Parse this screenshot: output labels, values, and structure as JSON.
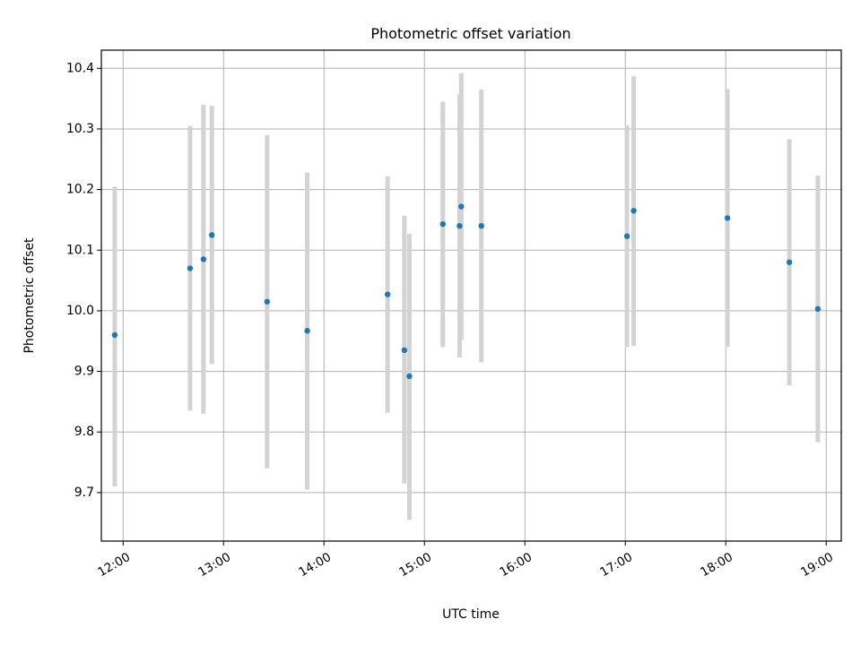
{
  "chart_data": {
    "type": "scatter",
    "title": "Photometric offset variation",
    "xlabel": "UTC time",
    "ylabel": "Photometric offset",
    "x_tick_labels": [
      "12:00",
      "13:00",
      "14:00",
      "15:00",
      "16:00",
      "17:00",
      "18:00",
      "19:00"
    ],
    "y_tick_labels": [
      "9.7",
      "9.8",
      "9.9",
      "10.0",
      "10.1",
      "10.2",
      "10.3",
      "10.4"
    ],
    "x_range": [
      "11:47",
      "19:09"
    ],
    "ylim": [
      9.62,
      10.43
    ],
    "grid": true,
    "marker_color": "#1f77b4",
    "errorbar_color": "#d3d3d3",
    "points": [
      {
        "time": "11:55",
        "y": 9.96,
        "low": 9.71,
        "high": 10.205
      },
      {
        "time": "12:40",
        "y": 10.07,
        "low": 9.835,
        "high": 10.305
      },
      {
        "time": "12:48",
        "y": 10.085,
        "low": 9.83,
        "high": 10.34
      },
      {
        "time": "12:53",
        "y": 10.125,
        "low": 9.912,
        "high": 10.338
      },
      {
        "time": "13:26",
        "y": 10.015,
        "low": 9.74,
        "high": 10.29
      },
      {
        "time": "13:50",
        "y": 9.967,
        "low": 9.705,
        "high": 10.228
      },
      {
        "time": "14:38",
        "y": 10.027,
        "low": 9.832,
        "high": 10.222
      },
      {
        "time": "14:48",
        "y": 9.935,
        "low": 9.715,
        "high": 10.157
      },
      {
        "time": "14:51",
        "y": 9.892,
        "low": 9.655,
        "high": 10.127
      },
      {
        "time": "15:11",
        "y": 10.143,
        "low": 9.94,
        "high": 10.345
      },
      {
        "time": "15:21",
        "y": 10.14,
        "low": 9.923,
        "high": 10.357
      },
      {
        "time": "15:22",
        "y": 10.172,
        "low": 9.952,
        "high": 10.392
      },
      {
        "time": "15:34",
        "y": 10.14,
        "low": 9.915,
        "high": 10.365
      },
      {
        "time": "17:01",
        "y": 10.123,
        "low": 9.94,
        "high": 10.306
      },
      {
        "time": "17:05",
        "y": 10.165,
        "low": 9.942,
        "high": 10.387
      },
      {
        "time": "18:01",
        "y": 10.153,
        "low": 9.94,
        "high": 10.366
      },
      {
        "time": "18:38",
        "y": 10.08,
        "low": 9.877,
        "high": 10.283
      },
      {
        "time": "18:55",
        "y": 10.003,
        "low": 9.783,
        "high": 10.223
      }
    ]
  }
}
